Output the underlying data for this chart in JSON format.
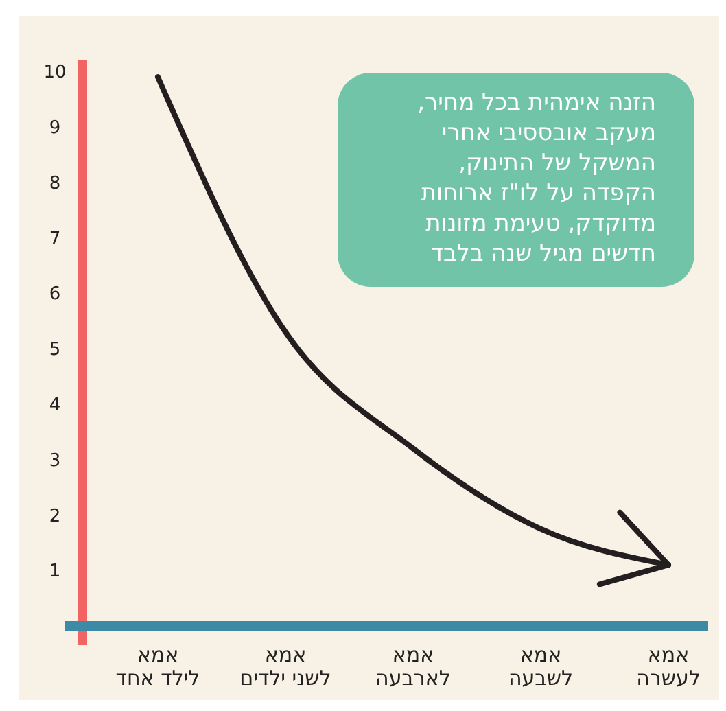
{
  "chart_data": {
    "type": "line",
    "categories": [
      "אמא לילד אחד",
      "אמא לשני ילדים",
      "אמא לארבעה",
      "אמא לשבעה",
      "אמא לעשרה"
    ],
    "series": [
      {
        "color": "#231f20",
        "values": [
          9.9,
          5.3,
          3.2,
          1.75,
          1.1
        ]
      }
    ],
    "ylim": [
      0,
      10.2
    ],
    "yticks": [
      1,
      2,
      3,
      4,
      5,
      6,
      7,
      8,
      9,
      10
    ],
    "grid": false,
    "marker": "none",
    "line_style": "solid",
    "annotations": [
      "הזנה אימהית בכל מחיר,\nמעקב אובססיבי אחרי\nהמשקל של התינוק,\nהקפדה על לו\"ז ארוחות\nמדוקדק, טעימת מזונות\nחדשים מגיל שנה בלבד"
    ]
  }
}
